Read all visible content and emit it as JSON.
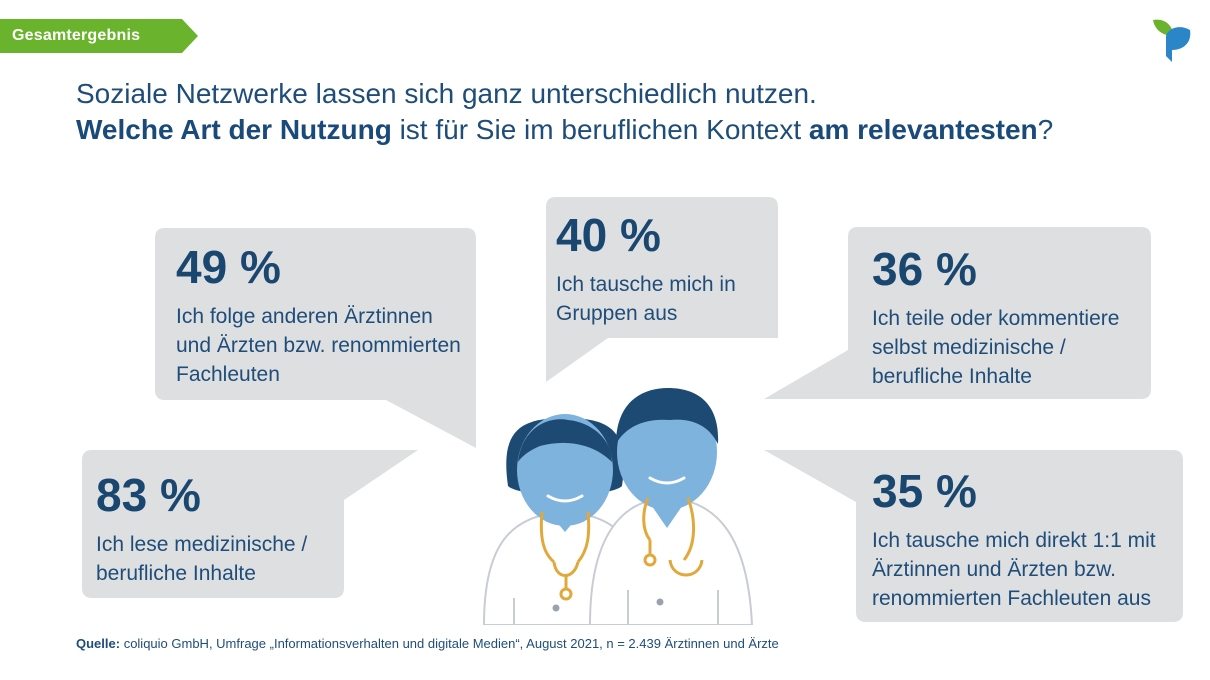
{
  "tag": "Gesamtergebnis",
  "title": {
    "line1": "Soziale Netzwerke lassen sich ganz unterschiedlich nutzen.",
    "line2_bold1": "Welche Art der Nutzung",
    "line2_mid": " ist für Sie im beruflichen Kontext ",
    "line2_bold2": "am relevantesten",
    "line2_end": "?"
  },
  "stats": [
    {
      "percent": "49 %",
      "text": "Ich folge anderen Ärztinnen und Ärzten bzw. renommierten Fachleuten"
    },
    {
      "percent": "40 %",
      "text": "Ich tausche mich in Gruppen aus"
    },
    {
      "percent": "36 %",
      "text": "Ich teile oder kommentiere selbst medizinische / berufliche Inhalte"
    },
    {
      "percent": "83 %",
      "text": "Ich lese medizinische / berufliche Inhalte"
    },
    {
      "percent": "35 %",
      "text": "Ich tausche mich direkt 1:1 mit Ärztinnen und Ärzten bzw. renommierten Fachleuten aus"
    }
  ],
  "source": {
    "label": "Quelle:",
    "text": " coliquio GmbH, Umfrage „Informationsverhalten und digitale Medien“, August 2021, n = 2.439 Ärztinnen und Ärzte"
  },
  "colors": {
    "tag_green": "#6ab42d",
    "navy": "#1f4d79",
    "bubble_gray": "#dedfe1",
    "face_blue": "#7eb3dd",
    "hair_navy": "#1c4a73",
    "stethoscope": "#e2a83b",
    "logo_green": "#6ab42d",
    "logo_blue": "#2b86c8"
  }
}
